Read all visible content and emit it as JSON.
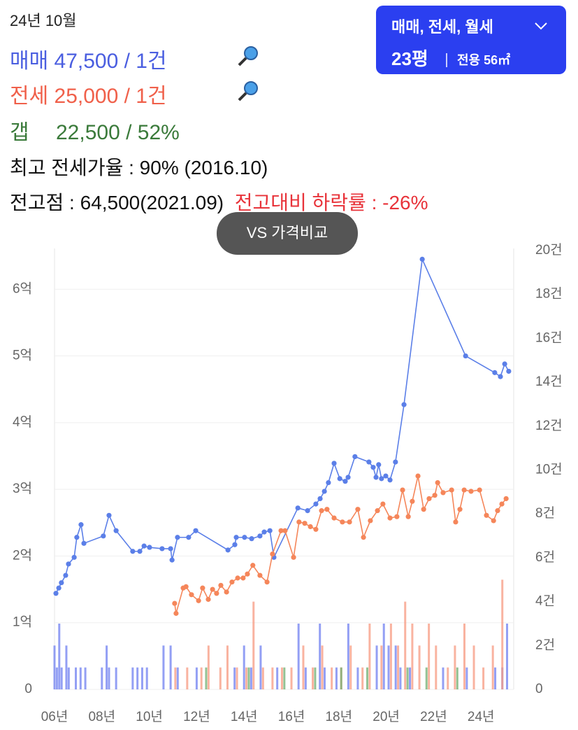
{
  "header": {
    "date": "24년 10월",
    "sale": {
      "label": "매매",
      "value": "47,500 / 1건"
    },
    "jeonse": {
      "label": "전세",
      "value": "25,000 / 1건"
    },
    "gap": {
      "label": "갭",
      "value": "22,500 / 52%"
    },
    "max_ratio": "최고 전세가율 : 90% (2016.10)",
    "peak": "전고점 : 64,500(2021.09)",
    "drop": "전고대비 하락률 : -26%"
  },
  "filter": {
    "types": "매매, 전세, 월세",
    "size": "23평",
    "area": "전용 56㎡"
  },
  "compare_button": "VS 가격비교",
  "chart_data": {
    "type": "line",
    "grid": true,
    "xlim": [
      2006,
      2025.38
    ],
    "xticks": [
      {
        "value": 2006,
        "label": "06년"
      },
      {
        "value": 2008,
        "label": "08년"
      },
      {
        "value": 2010,
        "label": "10년"
      },
      {
        "value": 2012,
        "label": "12년"
      },
      {
        "value": 2014,
        "label": "14년"
      },
      {
        "value": 2016,
        "label": "16년"
      },
      {
        "value": 2018,
        "label": "18년"
      },
      {
        "value": 2020,
        "label": "20년"
      },
      {
        "value": 2022,
        "label": "22년"
      },
      {
        "value": 2024,
        "label": "24년"
      }
    ],
    "ylim": [
      0,
      6.58
    ],
    "yticks": [
      0,
      {
        "value": 1,
        "label": "1억"
      },
      {
        "value": 2,
        "label": "2억"
      },
      {
        "value": 3,
        "label": "3억"
      },
      {
        "value": 4,
        "label": "4억"
      },
      {
        "value": 5,
        "label": "5억"
      },
      {
        "value": 6,
        "label": "6억"
      }
    ],
    "y2lim": [
      0,
      20
    ],
    "y2ticks": [
      0,
      {
        "value": 2,
        "label": "2건"
      },
      {
        "value": 4,
        "label": "4건"
      },
      {
        "value": 6,
        "label": "6건"
      },
      {
        "value": 8,
        "label": "8건"
      },
      {
        "value": 10,
        "label": "10건"
      },
      {
        "value": 12,
        "label": "12건"
      },
      {
        "value": 14,
        "label": "14건"
      },
      {
        "value": 16,
        "label": "16건"
      },
      {
        "value": 18,
        "label": "18건"
      },
      {
        "value": 20,
        "label": "20건"
      }
    ],
    "series": [
      {
        "type": "bar",
        "axis": "y2",
        "color": "#6f7ff0",
        "x": [
          2006.0,
          2006.1,
          2006.2,
          2006.3,
          2006.5,
          2006.6,
          2006.9,
          2007.1,
          2007.3,
          2008.0,
          2008.2,
          2008.3,
          2008.6,
          2009.3,
          2009.5,
          2009.7,
          2009.9,
          2010.6,
          2010.9,
          2011.2,
          2012.0,
          2013.6,
          2014.0,
          2014.3,
          2014.7,
          2015.4,
          2016.3,
          2016.6,
          2017.2,
          2017.4,
          2017.9,
          2018.4,
          2018.8,
          2019.6,
          2019.9,
          2020.1,
          2020.4,
          2020.6,
          2021.0,
          2022.4,
          2023.4,
          2024.6,
          2024.9,
          2025.1
        ],
        "values": [
          2,
          1,
          3,
          1,
          2,
          1,
          1,
          1,
          1,
          1,
          2,
          1,
          1,
          1,
          1,
          1,
          1,
          2,
          2,
          1,
          1,
          1,
          2,
          1,
          2,
          1,
          3,
          1,
          3,
          1,
          1,
          3,
          1,
          2,
          3,
          2,
          2,
          1,
          1,
          1,
          1,
          1,
          1,
          3
        ]
      },
      {
        "type": "bar",
        "axis": "y2",
        "color": "#f79a80",
        "x": [
          2011.1,
          2011.6,
          2012.2,
          2012.5,
          2013.0,
          2013.3,
          2013.7,
          2014.1,
          2014.4,
          2014.8,
          2015.2,
          2015.6,
          2016.0,
          2016.5,
          2016.9,
          2017.3,
          2017.7,
          2018.1,
          2018.5,
          2019.0,
          2019.3,
          2019.8,
          2020.2,
          2020.5,
          2020.8,
          2021.1,
          2021.4,
          2021.8,
          2022.1,
          2022.6,
          2022.9,
          2023.3,
          2023.7,
          2024.1,
          2024.5,
          2024.9
        ],
        "values": [
          1,
          1,
          1,
          2,
          1,
          2,
          1,
          1,
          4,
          1,
          1,
          1,
          1,
          2,
          1,
          2,
          1,
          1,
          2,
          1,
          3,
          2,
          3,
          2,
          4,
          3,
          2,
          3,
          2,
          1,
          2,
          3,
          2,
          1,
          2,
          5
        ]
      },
      {
        "type": "bar",
        "axis": "y2",
        "color": "#6fae6f",
        "x": [
          2012.4,
          2014.2,
          2015.7,
          2017.0,
          2018.1,
          2019.2,
          2020.9,
          2021.7,
          2023.0
        ],
        "values": [
          1,
          1,
          1,
          1,
          1,
          1,
          1,
          1,
          1
        ]
      },
      {
        "type": "line",
        "color": "#5b7fe8",
        "x": [
          2006.06,
          2006.18,
          2006.29,
          2006.47,
          2006.59,
          2006.83,
          2006.94,
          2007.12,
          2007.24,
          2008.06,
          2008.3,
          2008.6,
          2009.3,
          2009.6,
          2009.78,
          2010.01,
          2010.54,
          2010.9,
          2010.96,
          2011.19,
          2011.66,
          2011.96,
          2013.32,
          2013.61,
          2013.67,
          2014.02,
          2014.32,
          2014.67,
          2014.85,
          2015.09,
          2015.26,
          2016.27,
          2016.68,
          2017.03,
          2017.21,
          2017.39,
          2017.56,
          2017.8,
          2018.04,
          2018.27,
          2018.39,
          2018.68,
          2019.27,
          2019.45,
          2019.57,
          2019.68,
          2019.8,
          2019.98,
          2020.16,
          2020.39,
          2020.75,
          2021.52,
          2023.35,
          2024.58,
          2024.82,
          2025.0,
          2025.17
        ],
        "values": [
          1.44,
          1.52,
          1.6,
          1.71,
          1.88,
          1.98,
          2.28,
          2.47,
          2.19,
          2.3,
          2.61,
          2.38,
          2.07,
          2.07,
          2.15,
          2.13,
          2.11,
          2.11,
          1.94,
          2.28,
          2.28,
          2.38,
          2.09,
          2.17,
          2.28,
          2.28,
          2.26,
          2.3,
          2.36,
          2.38,
          1.98,
          2.72,
          2.68,
          2.78,
          2.86,
          2.97,
          3.1,
          3.39,
          3.16,
          3.12,
          3.18,
          3.49,
          3.41,
          3.33,
          3.18,
          3.37,
          3.16,
          3.2,
          3.14,
          3.41,
          4.27,
          6.45,
          5.0,
          4.75,
          4.69,
          4.88,
          4.77
        ]
      },
      {
        "type": "line",
        "color": "#f5865a",
        "x": [
          2011.07,
          2011.13,
          2011.43,
          2011.55,
          2011.78,
          2012.08,
          2012.25,
          2012.49,
          2012.67,
          2012.84,
          2013.02,
          2013.26,
          2013.49,
          2013.73,
          2013.96,
          2014.14,
          2014.37,
          2014.67,
          2014.97,
          2015.2,
          2015.56,
          2015.73,
          2016.09,
          2016.32,
          2016.56,
          2016.8,
          2017.03,
          2017.27,
          2017.5,
          2017.8,
          2018.15,
          2018.45,
          2018.8,
          2019.04,
          2019.33,
          2019.63,
          2019.86,
          2020.16,
          2020.45,
          2020.69,
          2020.93,
          2021.1,
          2021.34,
          2021.58,
          2021.81,
          2022.05,
          2022.17,
          2022.4,
          2022.76,
          2022.93,
          2023.11,
          2023.29,
          2023.58,
          2023.94,
          2024.23,
          2024.53,
          2024.7,
          2024.88,
          2025.06
        ],
        "values": [
          1.29,
          1.14,
          1.52,
          1.54,
          1.42,
          1.33,
          1.52,
          1.35,
          1.5,
          1.44,
          1.56,
          1.46,
          1.61,
          1.67,
          1.67,
          1.73,
          1.86,
          1.71,
          1.61,
          2.03,
          2.38,
          2.38,
          1.98,
          2.51,
          2.49,
          2.44,
          2.4,
          2.68,
          2.7,
          2.57,
          2.51,
          2.51,
          2.7,
          2.28,
          2.53,
          2.68,
          2.78,
          2.57,
          2.59,
          2.99,
          2.59,
          2.82,
          3.2,
          2.7,
          2.86,
          2.91,
          3.1,
          2.95,
          2.99,
          2.51,
          2.7,
          2.99,
          2.97,
          2.99,
          2.61,
          2.53,
          2.68,
          2.78,
          2.86
        ]
      }
    ]
  }
}
